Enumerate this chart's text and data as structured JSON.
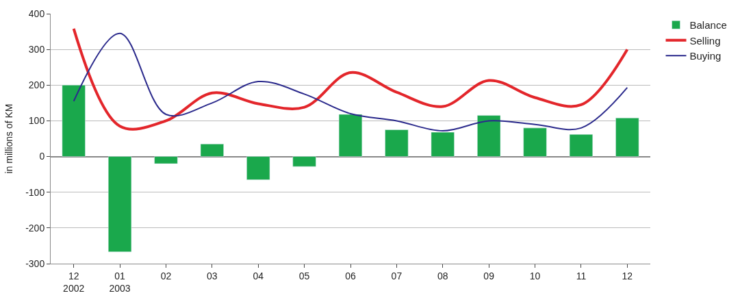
{
  "chart_data": {
    "type": "bar",
    "ylabel": "in millions of KM",
    "categories": [
      "12\n2002",
      "01\n2003",
      "02",
      "03",
      "04",
      "05",
      "06",
      "07",
      "08",
      "09",
      "10",
      "11",
      "12"
    ],
    "series": [
      {
        "name": "Balance",
        "color": "#1aa84c",
        "values": [
          200,
          -267,
          -20,
          35,
          -65,
          -28,
          118,
          75,
          68,
          115,
          80,
          62,
          108
        ]
      },
      {
        "name": "Selling",
        "type": "line",
        "color": "#e3262b",
        "values": [
          358,
          85,
          100,
          178,
          148,
          138,
          235,
          180,
          140,
          213,
          165,
          145,
          300
        ]
      },
      {
        "name": "Buying",
        "type": "line",
        "color": "#2b2a8c",
        "values": [
          155,
          345,
          118,
          150,
          210,
          175,
          120,
          100,
          72,
          100,
          90,
          80,
          193
        ]
      }
    ],
    "ylim": [
      -300,
      400
    ],
    "yticks": [
      -300,
      -200,
      -100,
      0,
      100,
      200,
      300,
      400
    ],
    "grid": "y",
    "legend": "right"
  }
}
